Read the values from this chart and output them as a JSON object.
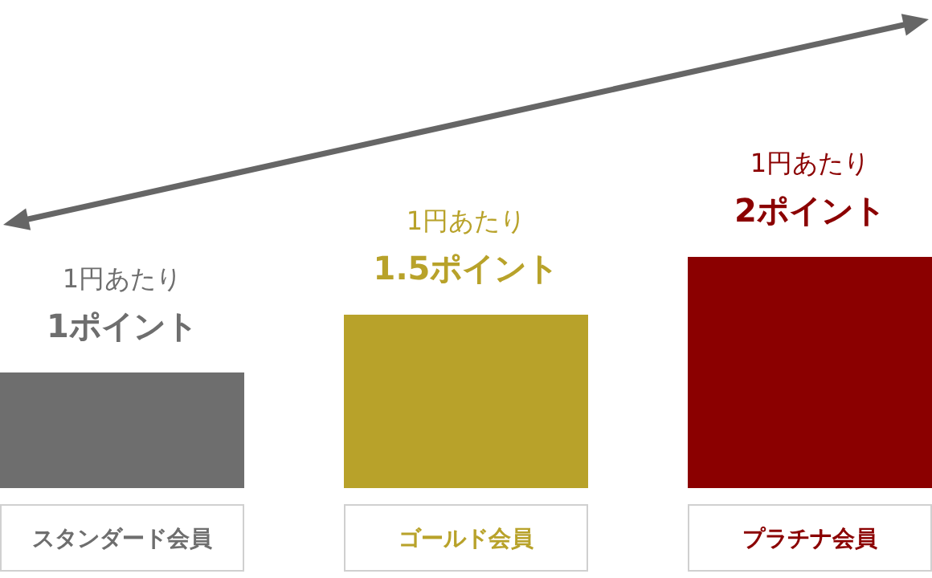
{
  "chart_data": {
    "type": "bar",
    "categories": [
      "スタンダード会員",
      "ゴールド会員",
      "プラチナ会員"
    ],
    "values": [
      1,
      1.5,
      2
    ],
    "colors": [
      "#6e6e6e",
      "#b8a22a",
      "#8b0000"
    ],
    "value_labels": [
      "1円あたり\n1ポイント",
      "1円あたり\n1.5ポイント",
      "1円あたり\n2ポイント"
    ]
  }
}
